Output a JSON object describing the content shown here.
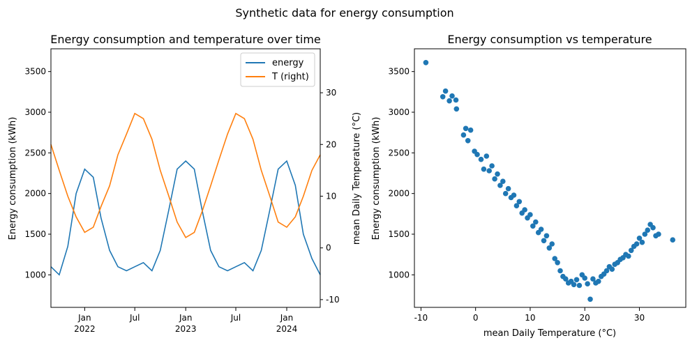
{
  "figure": {
    "suptitle": "Synthetic data for energy consumption"
  },
  "colors": {
    "energy": "#1f77b4",
    "temperature": "#ff7f0e"
  },
  "chart_data": [
    {
      "type": "line",
      "title": "Energy consumption and temperature over time",
      "xlabel": "",
      "ylabel": "Energy consumption (kWh)",
      "ylabel_right": "mean Daily Temperature (°C)",
      "xlim": [
        "2021-09-01",
        "2024-05-01"
      ],
      "ylim": [
        600,
        3780
      ],
      "ylim_right": [
        -11.5,
        38.5
      ],
      "xticks": [
        {
          "date": "2022-01-01",
          "label": "Jan",
          "year": "2022"
        },
        {
          "date": "2022-07-01",
          "label": "Jul",
          "year": ""
        },
        {
          "date": "2023-01-01",
          "label": "Jan",
          "year": "2023"
        },
        {
          "date": "2023-07-01",
          "label": "Jul",
          "year": ""
        },
        {
          "date": "2024-01-01",
          "label": "Jan",
          "year": "2024"
        }
      ],
      "yticks": [
        1000,
        1500,
        2000,
        2500,
        3000,
        3500
      ],
      "yticks_right": [
        -10,
        0,
        10,
        20,
        30
      ],
      "legend": {
        "position": "top-right",
        "entries": [
          "energy",
          "T (right)"
        ]
      },
      "grid": false,
      "series": [
        {
          "name": "energy",
          "axis": "left",
          "x": [
            "2021-09-01",
            "2021-10-01",
            "2021-11-01",
            "2021-12-01",
            "2022-01-01",
            "2022-02-01",
            "2022-03-01",
            "2022-04-01",
            "2022-05-01",
            "2022-06-01",
            "2022-07-01",
            "2022-08-01",
            "2022-09-01",
            "2022-10-01",
            "2022-11-01",
            "2022-12-01",
            "2023-01-01",
            "2023-02-01",
            "2023-03-01",
            "2023-04-01",
            "2023-05-01",
            "2023-06-01",
            "2023-07-01",
            "2023-08-01",
            "2023-09-01",
            "2023-10-01",
            "2023-11-01",
            "2023-12-01",
            "2024-01-01",
            "2024-02-01",
            "2024-03-01",
            "2024-04-01",
            "2024-05-01"
          ],
          "values": [
            1100,
            1000,
            1350,
            2000,
            2300,
            2200,
            1700,
            1300,
            1100,
            1050,
            1100,
            1150,
            1050,
            1300,
            1800,
            2300,
            2400,
            2300,
            1800,
            1300,
            1100,
            1050,
            1100,
            1150,
            1050,
            1300,
            1800,
            2300,
            2400,
            2100,
            1500,
            1200,
            1000
          ]
        },
        {
          "name": "T (right)",
          "axis": "right",
          "x": [
            "2021-09-01",
            "2021-10-01",
            "2021-11-01",
            "2021-12-01",
            "2022-01-01",
            "2022-02-01",
            "2022-03-01",
            "2022-04-01",
            "2022-05-01",
            "2022-06-01",
            "2022-07-01",
            "2022-08-01",
            "2022-09-01",
            "2022-10-01",
            "2022-11-01",
            "2022-12-01",
            "2023-01-01",
            "2023-02-01",
            "2023-03-01",
            "2023-04-01",
            "2023-05-01",
            "2023-06-01",
            "2023-07-01",
            "2023-08-01",
            "2023-09-01",
            "2023-10-01",
            "2023-11-01",
            "2023-12-01",
            "2024-01-01",
            "2024-02-01",
            "2024-03-01",
            "2024-04-01",
            "2024-05-01"
          ],
          "values": [
            20,
            15,
            10,
            6,
            3,
            4,
            8,
            12,
            18,
            22,
            26,
            25,
            21,
            15,
            10,
            5,
            2,
            3,
            7,
            12,
            17,
            22,
            26,
            25,
            21,
            15,
            10,
            5,
            4,
            6,
            10,
            15,
            18
          ]
        }
      ]
    },
    {
      "type": "scatter",
      "title": "Energy consumption vs temperature",
      "xlabel": "mean Daily Temperature (°C)",
      "ylabel": "Energy consumption (kWh)",
      "xlim": [
        -11.2,
        38.5
      ],
      "ylim": [
        600,
        3780
      ],
      "xticks": [
        -10,
        0,
        10,
        20,
        30
      ],
      "yticks": [
        1000,
        1500,
        2000,
        2500,
        3000,
        3500
      ],
      "grid": false,
      "points": [
        [
          -9.1,
          3610
        ],
        [
          -6.0,
          3190
        ],
        [
          -5.5,
          3260
        ],
        [
          -4.8,
          3140
        ],
        [
          -4.3,
          3200
        ],
        [
          -3.6,
          3150
        ],
        [
          -3.5,
          3040
        ],
        [
          -2.2,
          2720
        ],
        [
          -1.8,
          2800
        ],
        [
          -1.4,
          2650
        ],
        [
          -0.9,
          2780
        ],
        [
          -0.2,
          2520
        ],
        [
          0.3,
          2480
        ],
        [
          1.0,
          2420
        ],
        [
          1.5,
          2300
        ],
        [
          2.0,
          2460
        ],
        [
          2.5,
          2280
        ],
        [
          3.0,
          2340
        ],
        [
          3.5,
          2180
        ],
        [
          4.0,
          2240
        ],
        [
          4.5,
          2100
        ],
        [
          5.0,
          2150
        ],
        [
          5.5,
          2000
        ],
        [
          6.0,
          2060
        ],
        [
          6.5,
          1950
        ],
        [
          7.0,
          1980
        ],
        [
          7.5,
          1850
        ],
        [
          8.0,
          1900
        ],
        [
          8.5,
          1760
        ],
        [
          9.0,
          1800
        ],
        [
          9.5,
          1700
        ],
        [
          10.0,
          1740
        ],
        [
          10.5,
          1600
        ],
        [
          11.0,
          1650
        ],
        [
          11.5,
          1520
        ],
        [
          12.0,
          1560
        ],
        [
          12.5,
          1420
        ],
        [
          13.0,
          1480
        ],
        [
          13.5,
          1330
        ],
        [
          14.0,
          1380
        ],
        [
          14.5,
          1200
        ],
        [
          15.0,
          1150
        ],
        [
          15.5,
          1050
        ],
        [
          16.0,
          980
        ],
        [
          16.5,
          950
        ],
        [
          17.0,
          900
        ],
        [
          17.5,
          920
        ],
        [
          18.0,
          880
        ],
        [
          18.5,
          940
        ],
        [
          19.0,
          870
        ],
        [
          19.5,
          1000
        ],
        [
          20.0,
          960
        ],
        [
          20.5,
          890
        ],
        [
          21.0,
          700
        ],
        [
          21.5,
          950
        ],
        [
          22.0,
          900
        ],
        [
          22.5,
          920
        ],
        [
          23.0,
          980
        ],
        [
          23.5,
          1010
        ],
        [
          24.0,
          1050
        ],
        [
          24.5,
          1100
        ],
        [
          25.0,
          1070
        ],
        [
          25.5,
          1130
        ],
        [
          26.0,
          1150
        ],
        [
          26.5,
          1190
        ],
        [
          27.0,
          1210
        ],
        [
          27.5,
          1250
        ],
        [
          28.0,
          1230
        ],
        [
          28.5,
          1300
        ],
        [
          29.0,
          1350
        ],
        [
          29.5,
          1380
        ],
        [
          30.0,
          1450
        ],
        [
          30.5,
          1400
        ],
        [
          31.0,
          1500
        ],
        [
          31.5,
          1550
        ],
        [
          32.0,
          1620
        ],
        [
          32.5,
          1580
        ],
        [
          33.0,
          1480
        ],
        [
          33.5,
          1500
        ],
        [
          36.1,
          1430
        ]
      ]
    }
  ]
}
